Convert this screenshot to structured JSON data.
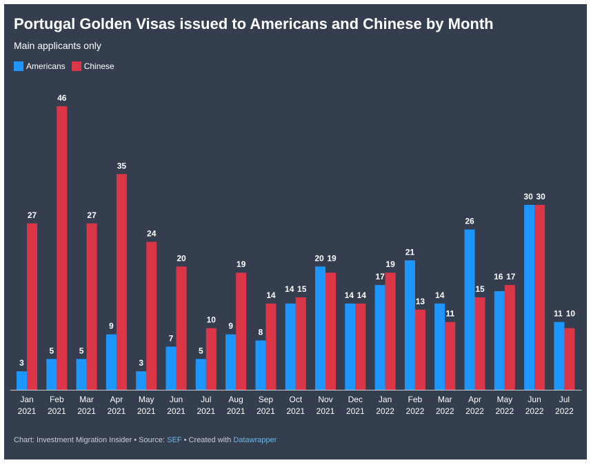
{
  "title": "Portugal Golden Visas issued to Americans and Chinese by Month",
  "subtitle": "Main applicants only",
  "footer": {
    "chart_by": "Chart: Investment Migration Insider",
    "sep1": " • Source: ",
    "source": "SEF",
    "sep2": " • Created with ",
    "tool": "Datawrapper"
  },
  "colors": {
    "background": "#343e4e",
    "americans": "#1e96ff",
    "chinese": "#db3648",
    "text": "#ffffff",
    "axis": "#c8cdd4"
  },
  "chart_data": {
    "type": "bar",
    "title": "Portugal Golden Visas issued to Americans and Chinese by Month",
    "subtitle": "Main applicants only",
    "categories": [
      "Jan 2021",
      "Feb 2021",
      "Mar 2021",
      "Apr 2021",
      "May 2021",
      "Jun 2021",
      "Jul 2021",
      "Aug 2021",
      "Sep 2021",
      "Oct 2021",
      "Nov 2021",
      "Dec 2021",
      "Jan 2022",
      "Feb 2022",
      "Mar 2022",
      "Apr 2022",
      "May 2022",
      "Jun 2022",
      "Jul 2022"
    ],
    "category_labels": [
      [
        "Jan",
        "2021"
      ],
      [
        "Feb",
        "2021"
      ],
      [
        "Mar",
        "2021"
      ],
      [
        "Apr",
        "2021"
      ],
      [
        "May",
        "2021"
      ],
      [
        "Jun",
        "2021"
      ],
      [
        "Jul",
        "2021"
      ],
      [
        "Aug",
        "2021"
      ],
      [
        "Sep",
        "2021"
      ],
      [
        "Oct",
        "2021"
      ],
      [
        "Nov",
        "2021"
      ],
      [
        "Dec",
        "2021"
      ],
      [
        "Jan",
        "2022"
      ],
      [
        "Feb",
        "2022"
      ],
      [
        "Mar",
        "2022"
      ],
      [
        "Apr",
        "2022"
      ],
      [
        "May",
        "2022"
      ],
      [
        "Jun",
        "2022"
      ],
      [
        "Jul",
        "2022"
      ]
    ],
    "series": [
      {
        "name": "Americans",
        "color": "#1e96ff",
        "values": [
          3,
          5,
          5,
          9,
          3,
          7,
          5,
          9,
          8,
          14,
          20,
          14,
          17,
          21,
          14,
          26,
          16,
          30,
          11
        ]
      },
      {
        "name": "Chinese",
        "color": "#db3648",
        "values": [
          27,
          46,
          27,
          35,
          24,
          20,
          10,
          19,
          14,
          15,
          19,
          14,
          19,
          13,
          11,
          15,
          17,
          30,
          10
        ]
      }
    ],
    "ylim": [
      0,
      46
    ],
    "grid": false,
    "legend_position": "top-left",
    "data_labels": true
  }
}
